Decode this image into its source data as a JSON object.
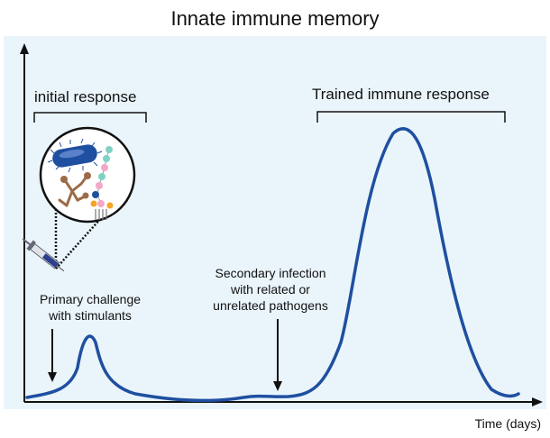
{
  "title": "Innate immune memory",
  "x_axis_label": "Time (days)",
  "annotations": {
    "initial_response": "initial response",
    "trained_response": "Trained immune response",
    "primary_challenge": [
      "Primary challenge",
      "with stimulants"
    ],
    "secondary_infection": [
      "Secondary infection",
      "with related or",
      "unrelated pathogens"
    ]
  },
  "colors": {
    "curve": "#1f4fa0",
    "background_panel": "#eaf5fb",
    "axis": "#111111"
  },
  "icons": [
    "bacterium-icon",
    "fungus-icon",
    "glycan-chain-icon",
    "syringe-icon"
  ]
}
